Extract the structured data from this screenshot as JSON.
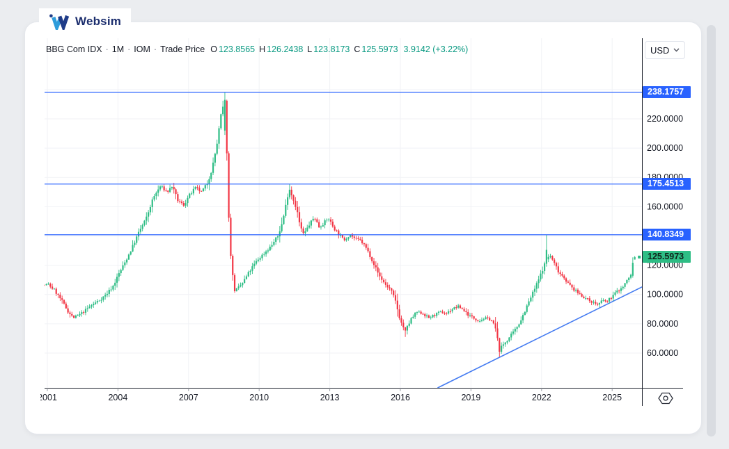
{
  "brand": {
    "name": "Websim"
  },
  "toolbar": {
    "currency": "USD"
  },
  "legend": {
    "symbol": "BBG Com IDX",
    "sep": "·",
    "interval": "1M",
    "venue": "IOM",
    "series_type": "Trade Price",
    "open_label": "O",
    "open": "123.8565",
    "high_label": "H",
    "high": "126.2438",
    "low_label": "L",
    "low": "123.8173",
    "close_label": "C",
    "close": "125.5973",
    "change": "3.9142 (+3.22%)"
  },
  "price_axis": {
    "badges": [
      {
        "label": "238.1757",
        "value": 238.1757,
        "type": "level",
        "bg": "#2962FF",
        "fg": "#FFFFFF"
      },
      {
        "label": "175.4513",
        "value": 175.4513,
        "type": "level",
        "bg": "#2962FF",
        "fg": "#FFFFFF"
      },
      {
        "label": "140.8349",
        "value": 140.8349,
        "type": "level",
        "bg": "#2962FF",
        "fg": "#FFFFFF"
      },
      {
        "label": "125.5973",
        "value": 125.5973,
        "type": "last-price",
        "bg": "#2EBD85",
        "fg": "#0E231A"
      }
    ]
  },
  "chart_data": {
    "type": "candlestick",
    "title": "BBG Com IDX 1M IOM Trade Price",
    "symbol": "BBG Com IDX",
    "interval": "1M",
    "venue": "IOM",
    "x_ticks": [
      2001,
      2004,
      2007,
      2010,
      2013,
      2016,
      2019,
      2022,
      2025
    ],
    "y_ticks": [
      240,
      220,
      200,
      180,
      160,
      140,
      120,
      100,
      80,
      60
    ],
    "x_range": [
      2000.7,
      2026.35
    ],
    "y_axis_visible_range": [
      36,
      258
    ],
    "grid": true,
    "price_levels": [
      238.1757,
      175.4513,
      140.8349
    ],
    "last_price": 125.5973,
    "prev_close": 121.6831,
    "ohlc_current": {
      "o": 123.8565,
      "h": 126.2438,
      "l": 123.8173,
      "c": 125.5973,
      "change": 3.9142,
      "change_pct": 3.22
    },
    "trendline": {
      "points": [
        [
          2017.58,
          36.2
        ],
        [
          2026.35,
          105.8
        ]
      ]
    },
    "close_anchors": [
      [
        2000.7,
        106
      ],
      [
        2001.04,
        107
      ],
      [
        2001.3,
        103
      ],
      [
        2001.6,
        96
      ],
      [
        2001.9,
        88
      ],
      [
        2002.1,
        84
      ],
      [
        2002.35,
        86
      ],
      [
        2002.6,
        89
      ],
      [
        2002.9,
        93
      ],
      [
        2003.2,
        96
      ],
      [
        2003.5,
        100
      ],
      [
        2003.8,
        106
      ],
      [
        2004.0,
        113
      ],
      [
        2004.3,
        122
      ],
      [
        2004.6,
        132
      ],
      [
        2004.9,
        143
      ],
      [
        2005.2,
        152
      ],
      [
        2005.5,
        166
      ],
      [
        2005.8,
        174
      ],
      [
        2006.1,
        170
      ],
      [
        2006.3,
        174
      ],
      [
        2006.55,
        164
      ],
      [
        2006.8,
        161
      ],
      [
        2007.0,
        167
      ],
      [
        2007.3,
        173
      ],
      [
        2007.55,
        170
      ],
      [
        2007.8,
        176
      ],
      [
        2008.0,
        186
      ],
      [
        2008.2,
        202
      ],
      [
        2008.37,
        222
      ],
      [
        2008.54,
        233
      ],
      [
        2008.63,
        196
      ],
      [
        2008.71,
        152
      ],
      [
        2008.79,
        128
      ],
      [
        2008.88,
        112
      ],
      [
        2008.96,
        103
      ],
      [
        2009.1,
        104
      ],
      [
        2009.3,
        108
      ],
      [
        2009.6,
        116
      ],
      [
        2009.9,
        123
      ],
      [
        2010.2,
        128
      ],
      [
        2010.5,
        133
      ],
      [
        2010.8,
        140
      ],
      [
        2011.0,
        150
      ],
      [
        2011.2,
        167
      ],
      [
        2011.29,
        172
      ],
      [
        2011.45,
        165
      ],
      [
        2011.6,
        158
      ],
      [
        2011.75,
        146
      ],
      [
        2011.9,
        141
      ],
      [
        2012.1,
        147
      ],
      [
        2012.35,
        153
      ],
      [
        2012.55,
        146
      ],
      [
        2012.75,
        149
      ],
      [
        2012.95,
        152
      ],
      [
        2013.15,
        146
      ],
      [
        2013.4,
        141
      ],
      [
        2013.6,
        137
      ],
      [
        2013.85,
        141
      ],
      [
        2014.1,
        138
      ],
      [
        2014.3,
        137
      ],
      [
        2014.5,
        133
      ],
      [
        2014.7,
        127
      ],
      [
        2014.9,
        120
      ],
      [
        2015.1,
        113
      ],
      [
        2015.35,
        107
      ],
      [
        2015.6,
        103
      ],
      [
        2015.8,
        95
      ],
      [
        2016.0,
        82
      ],
      [
        2016.21,
        75
      ],
      [
        2016.45,
        83
      ],
      [
        2016.7,
        88
      ],
      [
        2016.95,
        87
      ],
      [
        2017.2,
        84
      ],
      [
        2017.45,
        86
      ],
      [
        2017.7,
        88
      ],
      [
        2017.95,
        87
      ],
      [
        2018.2,
        90
      ],
      [
        2018.45,
        92
      ],
      [
        2018.65,
        90
      ],
      [
        2018.9,
        86
      ],
      [
        2019.1,
        84
      ],
      [
        2019.35,
        82
      ],
      [
        2019.6,
        84
      ],
      [
        2019.85,
        83
      ],
      [
        2020.04,
        77
      ],
      [
        2020.21,
        62
      ],
      [
        2020.38,
        66
      ],
      [
        2020.6,
        70
      ],
      [
        2020.85,
        75
      ],
      [
        2021.1,
        82
      ],
      [
        2021.35,
        91
      ],
      [
        2021.6,
        100
      ],
      [
        2021.85,
        109
      ],
      [
        2022.04,
        117
      ],
      [
        2022.21,
        124
      ],
      [
        2022.35,
        127
      ],
      [
        2022.55,
        121
      ],
      [
        2022.75,
        115
      ],
      [
        2022.95,
        112
      ],
      [
        2023.15,
        107
      ],
      [
        2023.4,
        103
      ],
      [
        2023.65,
        100
      ],
      [
        2023.9,
        97
      ],
      [
        2024.15,
        95
      ],
      [
        2024.4,
        93
      ],
      [
        2024.6,
        96
      ],
      [
        2024.8,
        95
      ],
      [
        2025.0,
        99
      ],
      [
        2025.2,
        102
      ],
      [
        2025.45,
        105
      ],
      [
        2025.6,
        109
      ],
      [
        2025.79,
        113
      ],
      [
        2025.88,
        121.7
      ],
      [
        2025.96,
        125.6
      ]
    ],
    "candle_overrides": [
      {
        "t": 2008.54,
        "o": 212,
        "h": 238.1757,
        "l": 209,
        "c": 233
      },
      {
        "t": 2011.29,
        "h": 175.4513
      },
      {
        "t": 2014.12,
        "h": 140.2
      },
      {
        "t": 2016.21,
        "l": 71
      },
      {
        "t": 2020.21,
        "l": 57.4
      },
      {
        "t": 2022.21,
        "o": 121,
        "h": 140.8349,
        "l": 119,
        "c": 130.5
      },
      {
        "t": 2025.88,
        "o": 112.8,
        "l": 111.5,
        "c": 121.6831
      },
      {
        "t": 2025.96,
        "o": 123.8565,
        "h": 126.2438,
        "l": 123.8173,
        "c": 125.5973
      }
    ]
  },
  "colors": {
    "up": "#2EBD85",
    "down": "#F23645",
    "level_line": "#2962FF",
    "trendline": "#447BF1",
    "grid": "#F1F2F6",
    "axis_line": "#1E222D",
    "tick_text": "#131722",
    "muted": "#787B86",
    "value_text": "#089981",
    "brand_navy": "#1C2E6E",
    "brand_light_blue": "#2D9CDB",
    "page_bg": "#EBEDF0",
    "card_border": "#E4E7EC",
    "scrollbar": "#D9DCE1"
  }
}
